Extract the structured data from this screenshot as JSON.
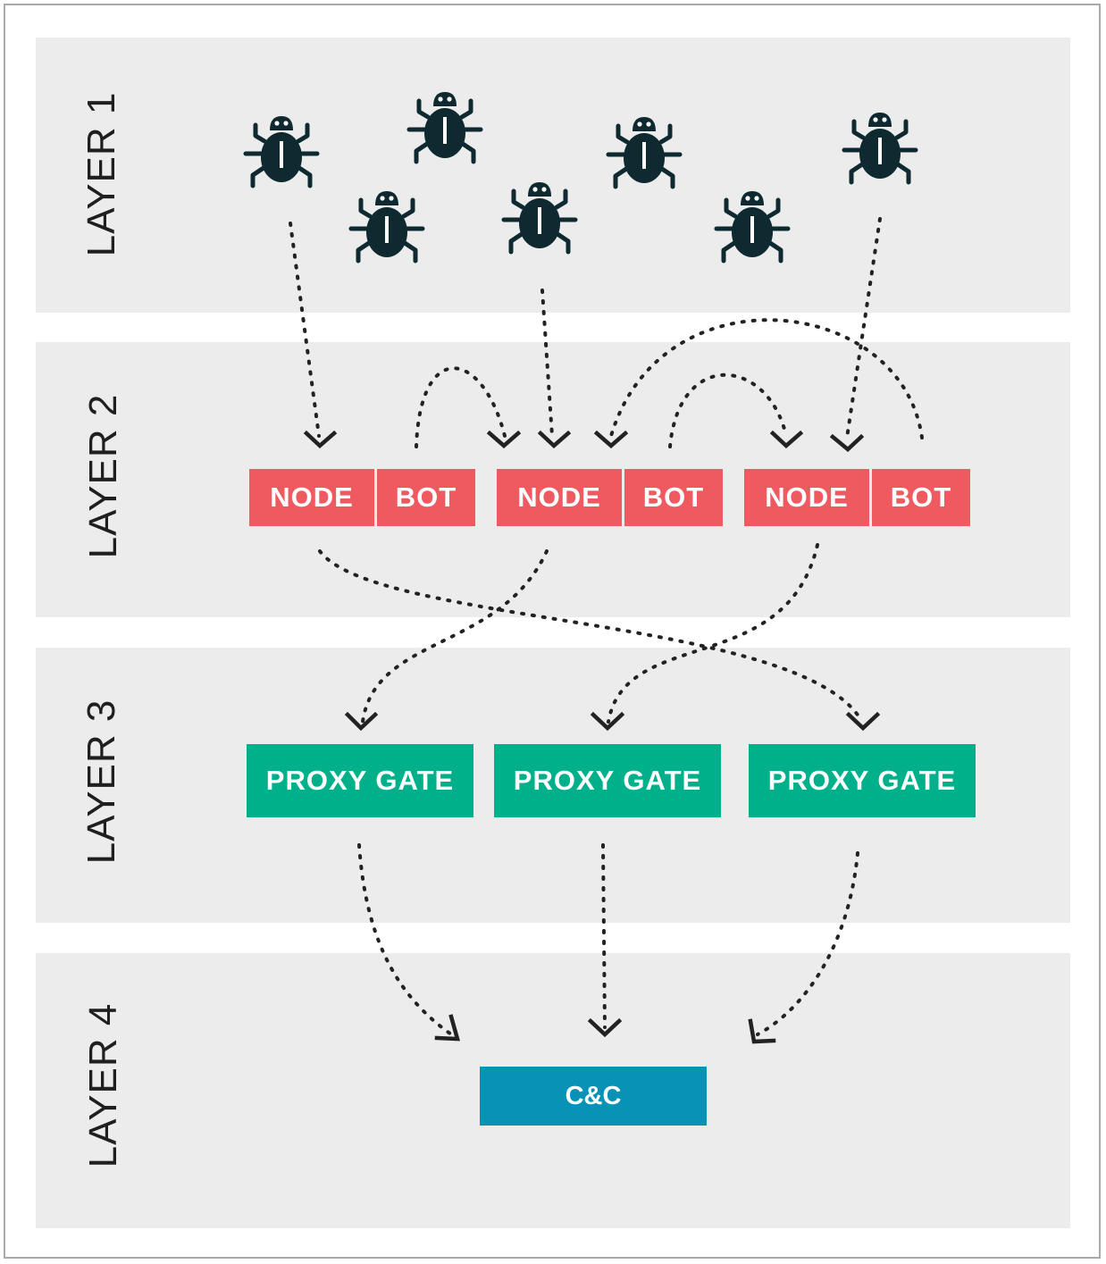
{
  "layers": [
    {
      "label": "LAYER 1"
    },
    {
      "label": "LAYER 2"
    },
    {
      "label": "LAYER 3"
    },
    {
      "label": "LAYER 4"
    }
  ],
  "bot_icon": "bug-icon",
  "pairs": [
    {
      "node": "NODE",
      "bot": "BOT"
    },
    {
      "node": "NODE",
      "bot": "BOT"
    },
    {
      "node": "NODE",
      "bot": "BOT"
    }
  ],
  "proxies": [
    "PROXY GATE",
    "PROXY GATE",
    "PROXY GATE"
  ],
  "cc": "C&C",
  "colors": {
    "band": "#ececec",
    "node_bot": "#ee5a60",
    "proxy": "#00b08a",
    "cc": "#0792b6",
    "icon": "#0e2a30",
    "arrow": "#222222"
  }
}
